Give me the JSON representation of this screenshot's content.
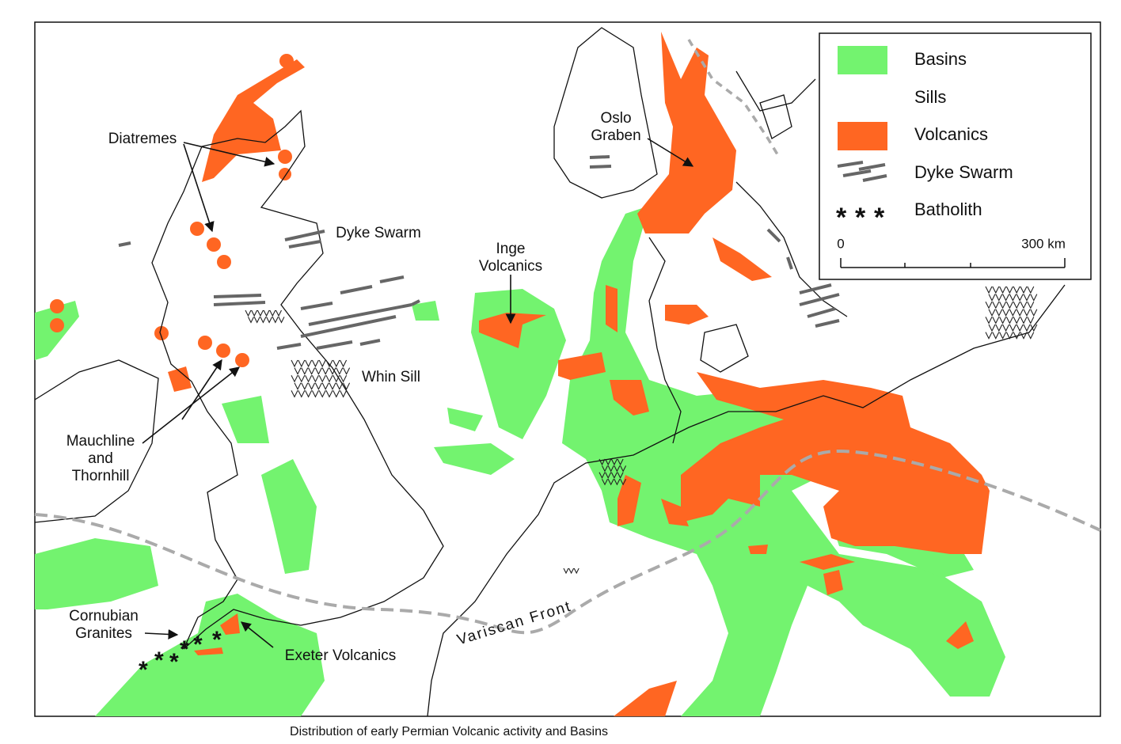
{
  "caption": "Distribution of early Permian Volcanic activity and Basins",
  "legend": {
    "items": [
      "Basins",
      "Sills",
      "Volcanics",
      "Dyke Swarm",
      "Batholith"
    ],
    "scale": {
      "start": "0",
      "end": "300 km"
    }
  },
  "labels": [
    {
      "lines": [
        "Diatremes"
      ]
    },
    {
      "lines": [
        "Dyke Swarm"
      ]
    },
    {
      "lines": [
        "Inge",
        "Volcanics"
      ]
    },
    {
      "lines": [
        "Oslo",
        "Graben"
      ]
    },
    {
      "lines": [
        "Whin Sill"
      ]
    },
    {
      "lines": [
        "Mauchline",
        "and",
        "Thornhill"
      ]
    },
    {
      "lines": [
        "Cornubian",
        "Granites"
      ]
    },
    {
      "lines": [
        "Exeter Volcanics"
      ]
    },
    {
      "lines": [
        "Variscan Front"
      ]
    }
  ]
}
